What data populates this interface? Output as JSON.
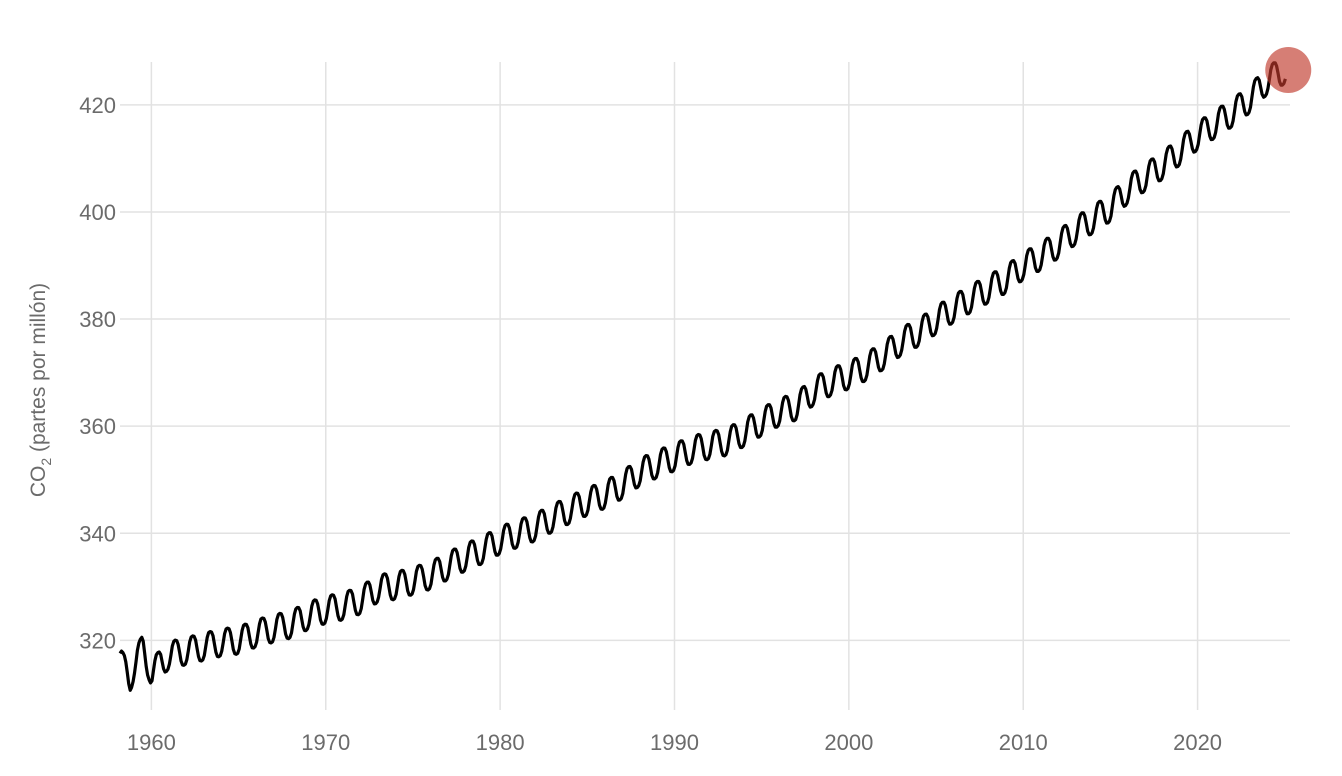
{
  "chart_data": {
    "type": "line",
    "title": "",
    "xlabel": "",
    "ylabel": "CO2 (partes por millón)",
    "ylabel_parts": {
      "main": "CO",
      "sub": "2",
      "rest": " (partes por millón)"
    },
    "xlim": [
      1958.2,
      2025.3
    ],
    "ylim": [
      307,
      428
    ],
    "x_ticks": [
      1960,
      1970,
      1980,
      1990,
      2000,
      2010,
      2020
    ],
    "y_ticks": [
      320,
      340,
      360,
      380,
      400,
      420
    ],
    "grid": true,
    "legend": "none",
    "series": [
      {
        "frequency": "monthly",
        "start": "1958-03",
        "points": [
          [
            1958.2,
            316.0
          ],
          [
            1958.5,
            314.5
          ],
          [
            1958.8,
            313.0
          ],
          [
            1959.0,
            315.3
          ],
          [
            1959.5,
            318.5
          ],
          [
            1960.0,
            314.0
          ],
          [
            1961.0,
            317.2
          ],
          [
            1962.0,
            318.0
          ],
          [
            1963.0,
            318.8
          ],
          [
            1964.0,
            319.6
          ],
          [
            1965.0,
            320.0
          ],
          [
            1966.0,
            321.3
          ],
          [
            1967.0,
            322.2
          ],
          [
            1968.0,
            323.0
          ],
          [
            1969.0,
            324.6
          ],
          [
            1970.0,
            325.7
          ],
          [
            1971.0,
            326.4
          ],
          [
            1972.0,
            327.5
          ],
          [
            1973.0,
            329.7
          ],
          [
            1974.0,
            330.2
          ],
          [
            1975.0,
            331.1
          ],
          [
            1976.0,
            332.1
          ],
          [
            1977.0,
            333.9
          ],
          [
            1978.0,
            335.5
          ],
          [
            1979.0,
            336.9
          ],
          [
            1980.0,
            338.7
          ],
          [
            1981.0,
            339.9
          ],
          [
            1982.0,
            341.1
          ],
          [
            1983.0,
            342.8
          ],
          [
            1984.0,
            344.4
          ],
          [
            1985.0,
            345.9
          ],
          [
            1986.0,
            347.2
          ],
          [
            1987.0,
            349.0
          ],
          [
            1988.0,
            351.4
          ],
          [
            1989.0,
            352.9
          ],
          [
            1990.0,
            354.2
          ],
          [
            1991.0,
            355.6
          ],
          [
            1992.0,
            356.4
          ],
          [
            1993.0,
            357.1
          ],
          [
            1994.0,
            358.8
          ],
          [
            1995.0,
            360.8
          ],
          [
            1996.0,
            362.6
          ],
          [
            1997.0,
            363.7
          ],
          [
            1998.0,
            366.6
          ],
          [
            1999.0,
            368.3
          ],
          [
            2000.0,
            369.5
          ],
          [
            2001.0,
            371.1
          ],
          [
            2002.0,
            373.2
          ],
          [
            2003.0,
            375.8
          ],
          [
            2004.0,
            377.5
          ],
          [
            2005.0,
            379.8
          ],
          [
            2006.0,
            381.9
          ],
          [
            2007.0,
            383.8
          ],
          [
            2008.0,
            385.6
          ],
          [
            2009.0,
            387.4
          ],
          [
            2010.0,
            389.9
          ],
          [
            2011.0,
            391.7
          ],
          [
            2012.0,
            393.9
          ],
          [
            2013.0,
            396.5
          ],
          [
            2014.0,
            398.6
          ],
          [
            2015.0,
            400.8
          ],
          [
            2016.0,
            404.2
          ],
          [
            2017.0,
            406.5
          ],
          [
            2018.0,
            408.7
          ],
          [
            2019.0,
            411.4
          ],
          [
            2020.0,
            414.2
          ],
          [
            2021.0,
            416.4
          ],
          [
            2022.0,
            418.5
          ],
          [
            2023.0,
            421.1
          ],
          [
            2024.0,
            424.6
          ],
          [
            2025.0,
            426.5
          ]
        ],
        "seasonal_amplitude": 3.0,
        "color": "#000000"
      }
    ],
    "highlight": {
      "x": 2025.2,
      "y": 426.5,
      "color": "#c0392b"
    }
  }
}
